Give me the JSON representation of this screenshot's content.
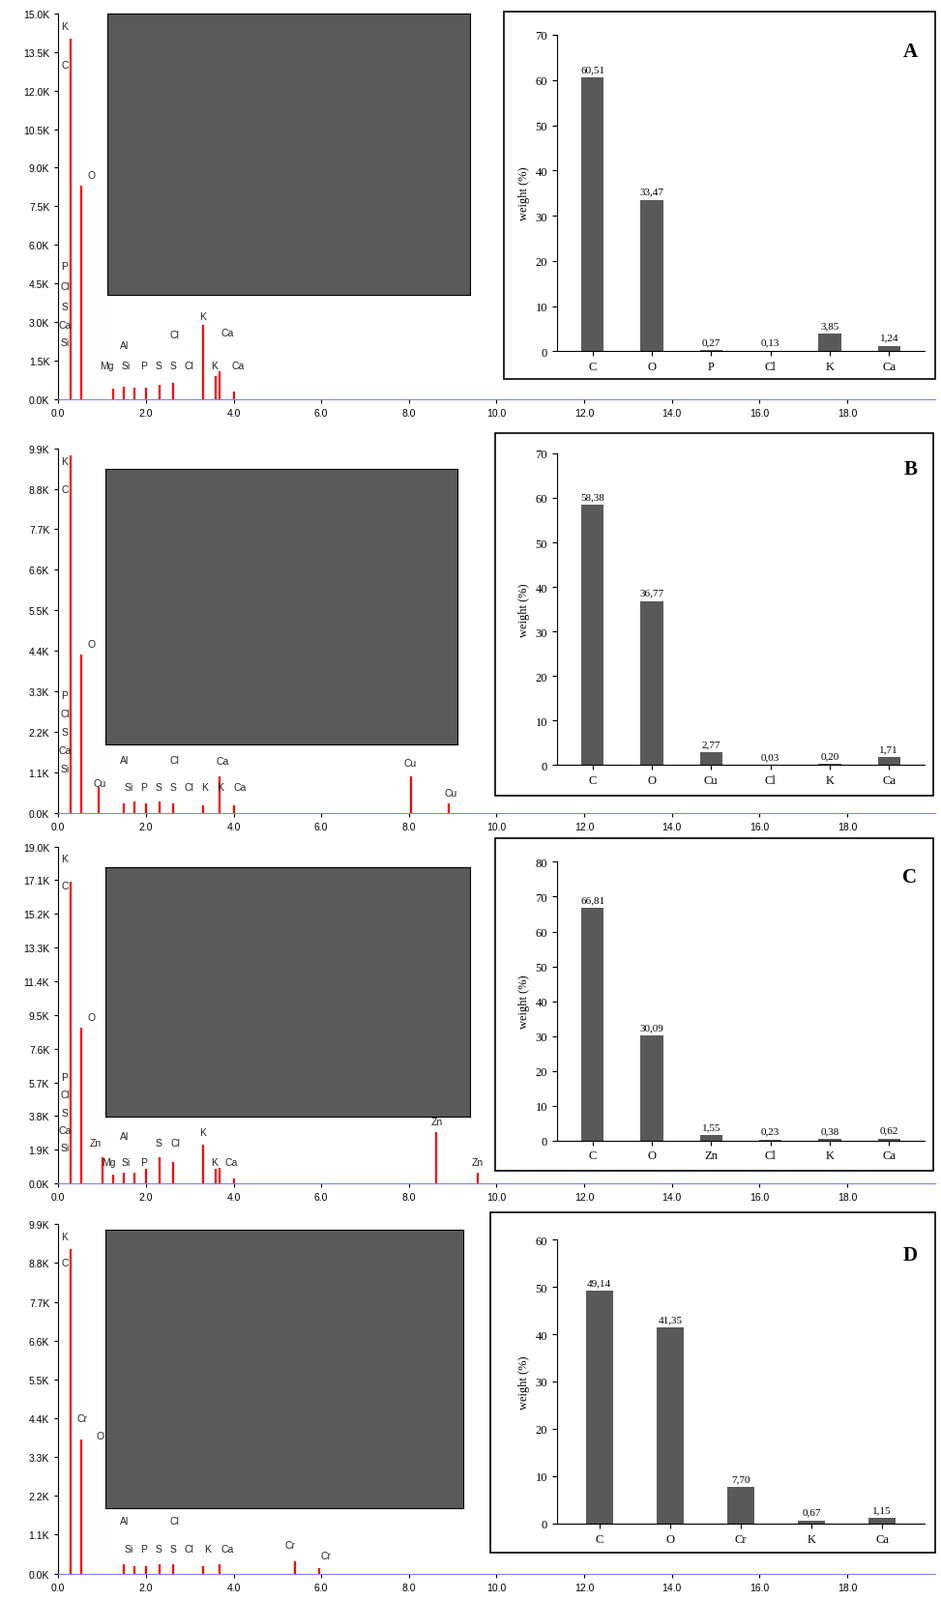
{
  "chart_data": [
    {
      "type": "stem",
      "color": "#ff0000",
      "x": [
        0.277,
        0.525,
        1.25,
        1.49,
        1.74,
        2.01,
        2.31,
        2.62,
        3.31,
        3.59,
        3.69,
        4.01
      ],
      "values": [
        14000,
        8300,
        400,
        500,
        450,
        450,
        550,
        650,
        2900,
        900,
        1100,
        300
      ],
      "xlim": [
        0.0,
        20.0
      ],
      "ylim": [
        0,
        15000
      ],
      "xticks": [
        0.0,
        2.0,
        4.0,
        6.0,
        8.0,
        10.0,
        12.0,
        14.0,
        16.0,
        18.0
      ],
      "yticks": [
        {
          "value": 0,
          "label": "0.0K"
        },
        {
          "value": 1500,
          "label": "1.5K"
        },
        {
          "value": 3000,
          "label": "3.0K"
        },
        {
          "value": 4500,
          "label": "4.5K"
        },
        {
          "value": 6000,
          "label": "6.0K"
        },
        {
          "value": 7500,
          "label": "7.5K"
        },
        {
          "value": 9000,
          "label": "9.0K"
        },
        {
          "value": 10500,
          "label": "10.5K"
        },
        {
          "value": 12000,
          "label": "12.0K"
        },
        {
          "value": 13500,
          "label": "13.5K"
        },
        {
          "value": 15000,
          "label": "15.0K"
        }
      ],
      "annotations": [
        {
          "text": "K",
          "x": 0.15,
          "y": 14500
        },
        {
          "text": "C",
          "x": 0.15,
          "y": 13000
        },
        {
          "text": "O",
          "x": 0.75,
          "y": 8700
        },
        {
          "text": "P",
          "x": 0.15,
          "y": 5200
        },
        {
          "text": "Cl",
          "x": 0.15,
          "y": 4400
        },
        {
          "text": "S",
          "x": 0.15,
          "y": 3600
        },
        {
          "text": "Ca",
          "x": 0.15,
          "y": 2900
        },
        {
          "text": "Si",
          "x": 0.15,
          "y": 2200
        },
        {
          "text": "Al",
          "x": 1.5,
          "y": 2100
        },
        {
          "text": "Mg",
          "x": 1.1,
          "y": 1300
        },
        {
          "text": "Si",
          "x": 1.55,
          "y": 1300
        },
        {
          "text": "P",
          "x": 1.95,
          "y": 1300
        },
        {
          "text": "S",
          "x": 2.3,
          "y": 1300
        },
        {
          "text": "S",
          "x": 2.62,
          "y": 1300
        },
        {
          "text": "Cl",
          "x": 2.98,
          "y": 1300
        },
        {
          "text": "Cl",
          "x": 2.65,
          "y": 2500
        },
        {
          "text": "K",
          "x": 3.3,
          "y": 3250
        },
        {
          "text": "Ca",
          "x": 3.85,
          "y": 2600
        },
        {
          "text": "K",
          "x": 3.55,
          "y": 1300
        },
        {
          "text": "Ca",
          "x": 4.1,
          "y": 1300
        }
      ]
    },
    {
      "type": "bar",
      "title": "A",
      "ylabel": "weight (%)",
      "color": "#595959",
      "data_labels": true,
      "categories": [
        "C",
        "O",
        "P",
        "Cl",
        "K",
        "Ca"
      ],
      "values": [
        60.51,
        33.47,
        0.27,
        0.13,
        3.85,
        1.24
      ],
      "value_labels": [
        "60,51",
        "33,47",
        "0,27",
        "0,13",
        "3,85",
        "1,24"
      ],
      "ylim": [
        0,
        70
      ],
      "yticks": [
        0,
        10,
        20,
        30,
        40,
        50,
        60,
        70
      ]
    },
    {
      "type": "stem",
      "color": "#ff0000",
      "x": [
        0.277,
        0.525,
        0.93,
        1.49,
        1.74,
        2.01,
        2.31,
        2.62,
        3.31,
        3.69,
        4.01,
        8.04,
        8.9
      ],
      "values": [
        9700,
        4300,
        700,
        250,
        300,
        250,
        300,
        250,
        200,
        1000,
        200,
        1000,
        250
      ],
      "xlim": [
        0.0,
        20.0
      ],
      "ylim": [
        0,
        9900
      ],
      "xticks": [
        0.0,
        2.0,
        4.0,
        6.0,
        8.0,
        10.0,
        12.0,
        14.0,
        16.0,
        18.0
      ],
      "yticks": [
        {
          "value": 0,
          "label": "0.0K"
        },
        {
          "value": 1100,
          "label": "1.1K"
        },
        {
          "value": 2200,
          "label": "2.2K"
        },
        {
          "value": 3300,
          "label": "3.3K"
        },
        {
          "value": 4400,
          "label": "4.4K"
        },
        {
          "value": 5500,
          "label": "5.5K"
        },
        {
          "value": 6600,
          "label": "6.6K"
        },
        {
          "value": 7700,
          "label": "7.7K"
        },
        {
          "value": 8800,
          "label": "8.8K"
        },
        {
          "value": 9900,
          "label": "9.9K"
        }
      ],
      "annotations": [
        {
          "text": "K",
          "x": 0.15,
          "y": 9550
        },
        {
          "text": "C",
          "x": 0.15,
          "y": 8800
        },
        {
          "text": "O",
          "x": 0.75,
          "y": 4600
        },
        {
          "text": "P",
          "x": 0.15,
          "y": 3200
        },
        {
          "text": "Cl",
          "x": 0.15,
          "y": 2700
        },
        {
          "text": "S",
          "x": 0.15,
          "y": 2200
        },
        {
          "text": "Ca",
          "x": 0.15,
          "y": 1700
        },
        {
          "text": "Si",
          "x": 0.15,
          "y": 1200
        },
        {
          "text": "Cu",
          "x": 0.95,
          "y": 800
        },
        {
          "text": "Al",
          "x": 1.5,
          "y": 1450
        },
        {
          "text": "Si",
          "x": 1.6,
          "y": 700
        },
        {
          "text": "P",
          "x": 1.95,
          "y": 700
        },
        {
          "text": "S",
          "x": 2.3,
          "y": 700
        },
        {
          "text": "S",
          "x": 2.62,
          "y": 700
        },
        {
          "text": "Cl",
          "x": 2.98,
          "y": 700
        },
        {
          "text": "Cl",
          "x": 2.65,
          "y": 1450
        },
        {
          "text": "K",
          "x": 3.35,
          "y": 700
        },
        {
          "text": "K",
          "x": 3.7,
          "y": 700
        },
        {
          "text": "Ca",
          "x": 3.75,
          "y": 1400
        },
        {
          "text": "Ca",
          "x": 4.15,
          "y": 700
        },
        {
          "text": "Cu",
          "x": 8.04,
          "y": 1350
        },
        {
          "text": "Cu",
          "x": 8.95,
          "y": 550
        }
      ]
    },
    {
      "type": "bar",
      "title": "B",
      "ylabel": "weight (%)",
      "color": "#595959",
      "data_labels": true,
      "categories": [
        "C",
        "O",
        "Cu",
        "Cl",
        "K",
        "Ca"
      ],
      "values": [
        58.38,
        36.77,
        2.77,
        0.03,
        0.2,
        1.71
      ],
      "value_labels": [
        "58,38",
        "36,77",
        "2,77",
        "0,03",
        "0,20",
        "1,71"
      ],
      "ylim": [
        0,
        70
      ],
      "yticks": [
        0,
        10,
        20,
        30,
        40,
        50,
        60,
        70
      ]
    },
    {
      "type": "stem",
      "color": "#ff0000",
      "x": [
        0.277,
        0.525,
        1.01,
        1.25,
        1.49,
        1.74,
        2.01,
        2.31,
        2.62,
        3.31,
        3.59,
        3.69,
        4.01,
        8.63,
        9.57
      ],
      "values": [
        17000,
        8800,
        1500,
        500,
        600,
        600,
        800,
        1500,
        1200,
        2200,
        800,
        900,
        300,
        2900,
        600
      ],
      "xlim": [
        0.0,
        20.0
      ],
      "ylim": [
        0,
        19000
      ],
      "xticks": [
        0.0,
        2.0,
        4.0,
        6.0,
        8.0,
        10.0,
        12.0,
        14.0,
        16.0,
        18.0
      ],
      "yticks": [
        {
          "value": 0,
          "label": "0.0K"
        },
        {
          "value": 1900,
          "label": "1.9K"
        },
        {
          "value": 3800,
          "label": "3.8K"
        },
        {
          "value": 5700,
          "label": "5.7K"
        },
        {
          "value": 7600,
          "label": "7.6K"
        },
        {
          "value": 9500,
          "label": "9.5K"
        },
        {
          "value": 11400,
          "label": "11.4K"
        },
        {
          "value": 13300,
          "label": "13.3K"
        },
        {
          "value": 15200,
          "label": "15.2K"
        },
        {
          "value": 17100,
          "label": "17.1K"
        },
        {
          "value": 19000,
          "label": "19.0K"
        }
      ],
      "annotations": [
        {
          "text": "K",
          "x": 0.15,
          "y": 18300
        },
        {
          "text": "C",
          "x": 0.15,
          "y": 16800
        },
        {
          "text": "O",
          "x": 0.75,
          "y": 9400
        },
        {
          "text": "P",
          "x": 0.15,
          "y": 6000
        },
        {
          "text": "Cl",
          "x": 0.15,
          "y": 5000
        },
        {
          "text": "S",
          "x": 0.15,
          "y": 4000
        },
        {
          "text": "Ca",
          "x": 0.15,
          "y": 3000
        },
        {
          "text": "Si",
          "x": 0.15,
          "y": 2000
        },
        {
          "text": "Zn",
          "x": 0.85,
          "y": 2300
        },
        {
          "text": "Al",
          "x": 1.5,
          "y": 2700
        },
        {
          "text": "Mg",
          "x": 1.15,
          "y": 1200
        },
        {
          "text": "Si",
          "x": 1.55,
          "y": 1200
        },
        {
          "text": "P",
          "x": 1.95,
          "y": 1200
        },
        {
          "text": "S",
          "x": 2.3,
          "y": 2300
        },
        {
          "text": "Cl",
          "x": 2.68,
          "y": 2300
        },
        {
          "text": "K",
          "x": 3.3,
          "y": 2900
        },
        {
          "text": "K",
          "x": 3.55,
          "y": 1200
        },
        {
          "text": "Ca",
          "x": 3.95,
          "y": 1200
        },
        {
          "text": "Zn",
          "x": 8.63,
          "y": 3500
        },
        {
          "text": "Zn",
          "x": 9.57,
          "y": 1200
        }
      ]
    },
    {
      "type": "bar",
      "title": "C",
      "ylabel": "weight (%)",
      "color": "#595959",
      "data_labels": true,
      "categories": [
        "C",
        "O",
        "Zn",
        "Cl",
        "K",
        "Ca"
      ],
      "values": [
        66.81,
        30.09,
        1.55,
        0.23,
        0.38,
        0.62
      ],
      "value_labels": [
        "66,81",
        "30,09",
        "1,55",
        "0,23",
        "0,38",
        "0,62"
      ],
      "ylim": [
        0,
        80
      ],
      "yticks": [
        0,
        10,
        20,
        30,
        40,
        50,
        60,
        70,
        80
      ]
    },
    {
      "type": "stem",
      "color": "#ff0000",
      "x": [
        0.277,
        0.525,
        1.49,
        1.74,
        2.01,
        2.31,
        2.62,
        3.31,
        3.69,
        5.41,
        5.95
      ],
      "values": [
        9200,
        3800,
        250,
        200,
        200,
        250,
        250,
        200,
        250,
        350,
        150
      ],
      "xlim": [
        0.0,
        20.0
      ],
      "ylim": [
        0,
        9900
      ],
      "xticks": [
        0.0,
        2.0,
        4.0,
        6.0,
        8.0,
        10.0,
        12.0,
        14.0,
        16.0,
        18.0
      ],
      "yticks": [
        {
          "value": 0,
          "label": "0.0K"
        },
        {
          "value": 1100,
          "label": "1.1K"
        },
        {
          "value": 2200,
          "label": "2.2K"
        },
        {
          "value": 3300,
          "label": "3.3K"
        },
        {
          "value": 4400,
          "label": "4.4K"
        },
        {
          "value": 5500,
          "label": "5.5K"
        },
        {
          "value": 6600,
          "label": "6.6K"
        },
        {
          "value": 7700,
          "label": "7.7K"
        },
        {
          "value": 8800,
          "label": "8.8K"
        },
        {
          "value": 9900,
          "label": "9.9K"
        }
      ],
      "annotations": [
        {
          "text": "K",
          "x": 0.15,
          "y": 9550
        },
        {
          "text": "C",
          "x": 0.15,
          "y": 8800
        },
        {
          "text": "Cr",
          "x": 0.55,
          "y": 4400
        },
        {
          "text": "O",
          "x": 0.95,
          "y": 3900
        },
        {
          "text": "Al",
          "x": 1.5,
          "y": 1500
        },
        {
          "text": "Cl",
          "x": 2.65,
          "y": 1500
        },
        {
          "text": "Si",
          "x": 1.6,
          "y": 700
        },
        {
          "text": "P",
          "x": 1.95,
          "y": 700
        },
        {
          "text": "S",
          "x": 2.3,
          "y": 700
        },
        {
          "text": "S",
          "x": 2.62,
          "y": 700
        },
        {
          "text": "Cl",
          "x": 2.98,
          "y": 700
        },
        {
          "text": "K",
          "x": 3.4,
          "y": 700
        },
        {
          "text": "Ca",
          "x": 3.85,
          "y": 700
        },
        {
          "text": "Cr",
          "x": 5.3,
          "y": 800
        },
        {
          "text": "Cr",
          "x": 6.1,
          "y": 500
        }
      ]
    },
    {
      "type": "bar",
      "title": "D",
      "ylabel": "weight (%)",
      "color": "#595959",
      "data_labels": true,
      "categories": [
        "C",
        "O",
        "Cr",
        "K",
        "Ca"
      ],
      "values": [
        49.14,
        41.35,
        7.7,
        0.67,
        1.15
      ],
      "value_labels": [
        "49,14",
        "41,35",
        "7,70",
        "0,67",
        "1,15"
      ],
      "ylim": [
        0,
        60
      ],
      "yticks": [
        0,
        10,
        20,
        30,
        40,
        50,
        60
      ]
    }
  ]
}
